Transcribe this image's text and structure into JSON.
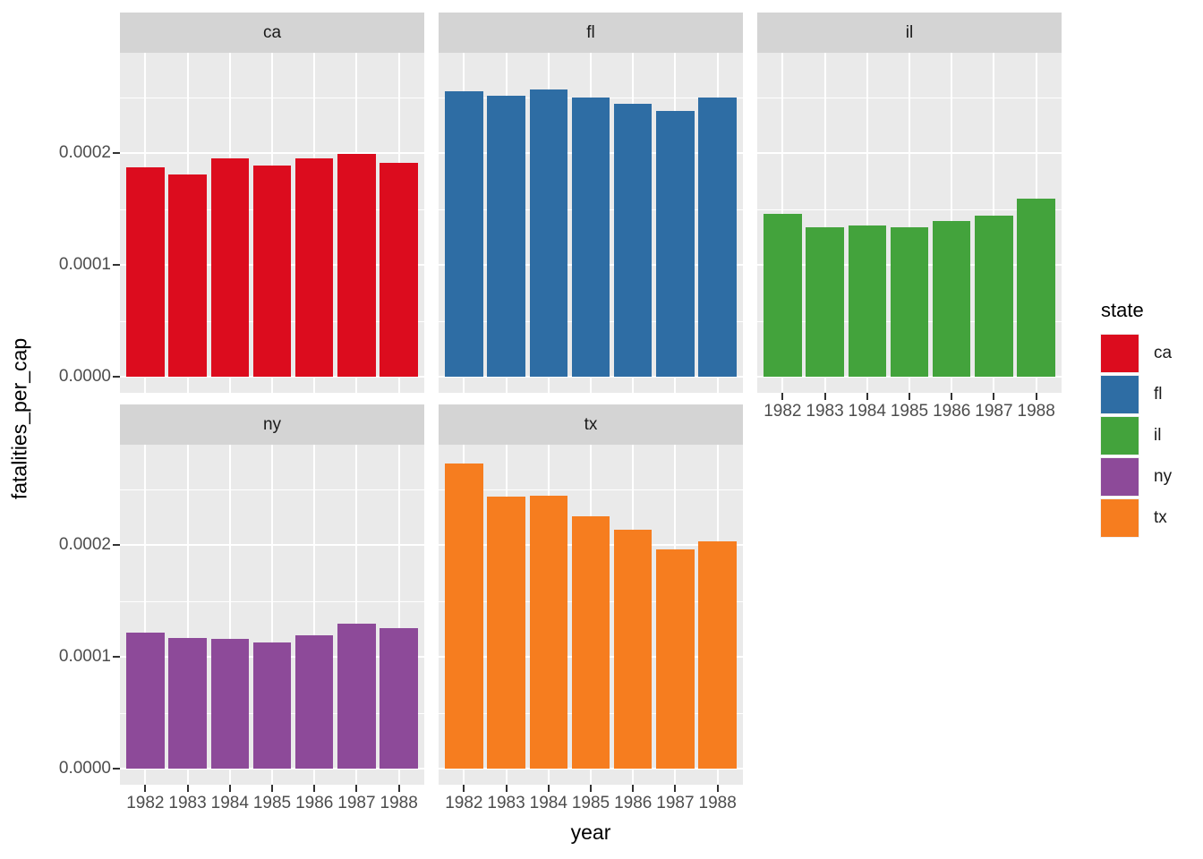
{
  "chart_data": {
    "type": "bar",
    "title": "",
    "xlabel": "year",
    "ylabel": "fatalities_per_cap",
    "legend_title": "state",
    "legend_position": "right",
    "grid": true,
    "panel_background": "#eaeaea",
    "gridline_color": "#ffffff",
    "strip_background": "#d4d4d4",
    "categories": [
      "1982",
      "1983",
      "1984",
      "1985",
      "1986",
      "1987",
      "1988"
    ],
    "y_major": [
      0,
      0.0001,
      0.0002
    ],
    "y_minor": [
      5e-05,
      0.00015,
      0.00025
    ],
    "y_tick_labels": [
      "0.0000",
      "0.0001",
      "0.0002"
    ],
    "ylim": [
      0,
      0.00029
    ],
    "facets": [
      {
        "label": "ca",
        "color": "#dc0c1e",
        "row": 0,
        "col": 0,
        "values": [
          0.000187,
          0.000181,
          0.000195,
          0.000189,
          0.000195,
          0.000199,
          0.000191
        ]
      },
      {
        "label": "fl",
        "color": "#2e6da4",
        "row": 0,
        "col": 1,
        "values": [
          0.000255,
          0.000251,
          0.000257,
          0.00025,
          0.000244,
          0.000238,
          0.00025
        ]
      },
      {
        "label": "il",
        "color": "#43a33c",
        "row": 0,
        "col": 2,
        "values": [
          0.000146,
          0.000134,
          0.000135,
          0.000134,
          0.000139,
          0.000144,
          0.000159
        ]
      },
      {
        "label": "ny",
        "color": "#8d4a99",
        "row": 1,
        "col": 0,
        "values": [
          0.000122,
          0.000117,
          0.000116,
          0.000113,
          0.000119,
          0.00013,
          0.000126
        ]
      },
      {
        "label": "tx",
        "color": "#f67d1f",
        "row": 1,
        "col": 1,
        "values": [
          0.000273,
          0.000243,
          0.000244,
          0.000226,
          0.000214,
          0.000196,
          0.000203
        ]
      }
    ]
  }
}
